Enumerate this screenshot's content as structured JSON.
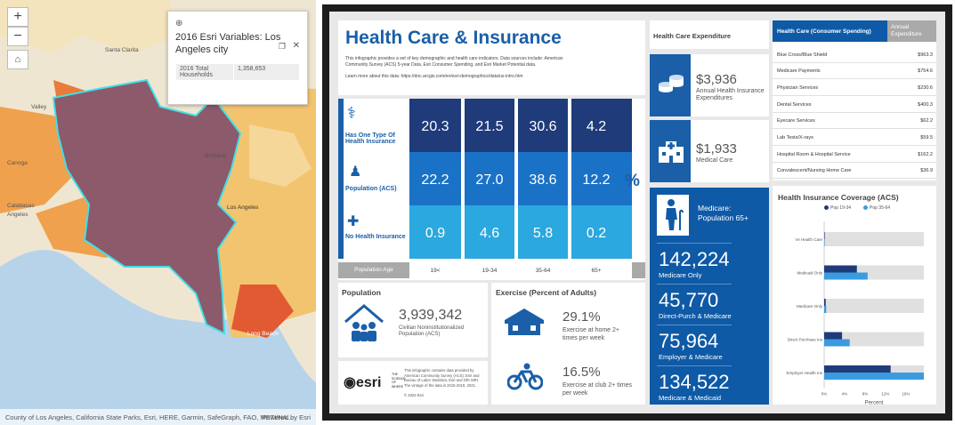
{
  "map": {
    "zoom_in": "+",
    "zoom_out": "−",
    "places": [
      "Santa Clarita",
      "Valley",
      "Canoga",
      "Burbank",
      "Los Angeles",
      "Calabasas",
      "Angeles",
      "Long Beach"
    ],
    "popup": {
      "title": "2016 Esri Variables: Los Angeles city",
      "label": "2016 Total Households",
      "value": "1,358,653"
    },
    "attribution": "County of Los Angeles, California State Parks, Esri, HERE, Garmin, SafeGraph, FAO, METI/NA...",
    "powered": "Powered by Esri"
  },
  "header": {
    "title": "Health Care & Insurance",
    "desc": "This infographic provides a set of key demographic and health care indicators. Data sources include: American Community Survey (ACS) 5-year Data, Esri Consumer Spending, and Esri Market Potential data.",
    "learn": "Learn more about this data: https://doc.arcgis.com/en/esri-demographics/data/us-intro.htm"
  },
  "insurance": {
    "rows": [
      {
        "label": "Has One Type Of Health Insurance",
        "values": [
          "20.3",
          "21.5",
          "30.6",
          "4.2"
        ]
      },
      {
        "label": "Population (ACS)",
        "values": [
          "22.2",
          "27.0",
          "38.6",
          "12.2"
        ]
      },
      {
        "label": "No Health Insurance",
        "values": [
          "0.9",
          "4.6",
          "5.8",
          "0.2"
        ]
      }
    ],
    "pct": "%",
    "age_label": "Population Age",
    "ages": [
      "19<",
      "19-34",
      "35-64",
      "65+"
    ]
  },
  "expenditure": {
    "title": "Health Care Expenditure",
    "items": [
      {
        "value": "$3,936",
        "label": "Annual Health Insurance Expenditures"
      },
      {
        "value": "$1,933",
        "label": "Medical Care"
      }
    ]
  },
  "spending": {
    "col1": "Health Care (Consumer Spending)",
    "col2": "Annual Expenditure",
    "rows": [
      {
        "name": "Blue Cross/Blue Shield",
        "value": "$963.3"
      },
      {
        "name": "Medicare Payments",
        "value": "$754.6"
      },
      {
        "name": "Physician Services",
        "value": "$230.6"
      },
      {
        "name": "Dental Services",
        "value": "$400.3"
      },
      {
        "name": "Eyecare Services",
        "value": "$62.2"
      },
      {
        "name": "Lab Tests/X-rays",
        "value": "$59.5"
      },
      {
        "name": "Hospital Room & Hospital Service",
        "value": "$162.2"
      },
      {
        "name": "Convalescent/Nursing Home Care",
        "value": "$36.9"
      }
    ]
  },
  "medicare": {
    "title": "Medicare: Population 65+",
    "items": [
      {
        "value": "142,224",
        "label": "Medicare Only"
      },
      {
        "value": "45,770",
        "label": "Direct-Purch & Medicare"
      },
      {
        "value": "75,964",
        "label": "Employer & Medicare"
      },
      {
        "value": "134,522",
        "label": "Medicare & Medicaid"
      }
    ]
  },
  "population": {
    "title": "Population",
    "value": "3,939,342",
    "label": "Civilian Noninstitutionalized Population (ACS)"
  },
  "exercise": {
    "title": "Exercise (Percent of Adults)",
    "items": [
      {
        "value": "29.1%",
        "label": "Exercise at home 2+ times per week"
      },
      {
        "value": "16.5%",
        "label": "Exercise at club 2+ times per week"
      }
    ]
  },
  "footer": {
    "brand": "esri",
    "tag": "THE SCIENCE OF WHERE",
    "text": "This infographic contains data provided by American Community Survey (ACS), Esri and Bureau of Labor Statistics, Esri and GfK MRI. The vintage of the data is 2015-2019, 2021.",
    "copy": "© 2022 Esri"
  },
  "chart_data": {
    "type": "bar",
    "title": "Health Insurance Coverage (ACS)",
    "categories": [
      "VA Health Care",
      "Medicaid Only",
      "Medicare Only",
      "Direct Purchase Ins",
      "Employer Health Ins"
    ],
    "series": [
      {
        "name": "Pop 19-34",
        "values": [
          0.1,
          6.4,
          0.3,
          3.5,
          13
        ],
        "color": "#1f3b7a"
      },
      {
        "name": "Pop 35-64",
        "values": [
          0.1,
          8.5,
          0.4,
          5.0,
          19.5
        ],
        "color": "#3b9be0"
      }
    ],
    "xlim": [
      0,
      19.5
    ],
    "ticks": [
      "0%",
      "4%",
      "8%",
      "12%",
      "16%"
    ],
    "xlabel": "Percent"
  }
}
